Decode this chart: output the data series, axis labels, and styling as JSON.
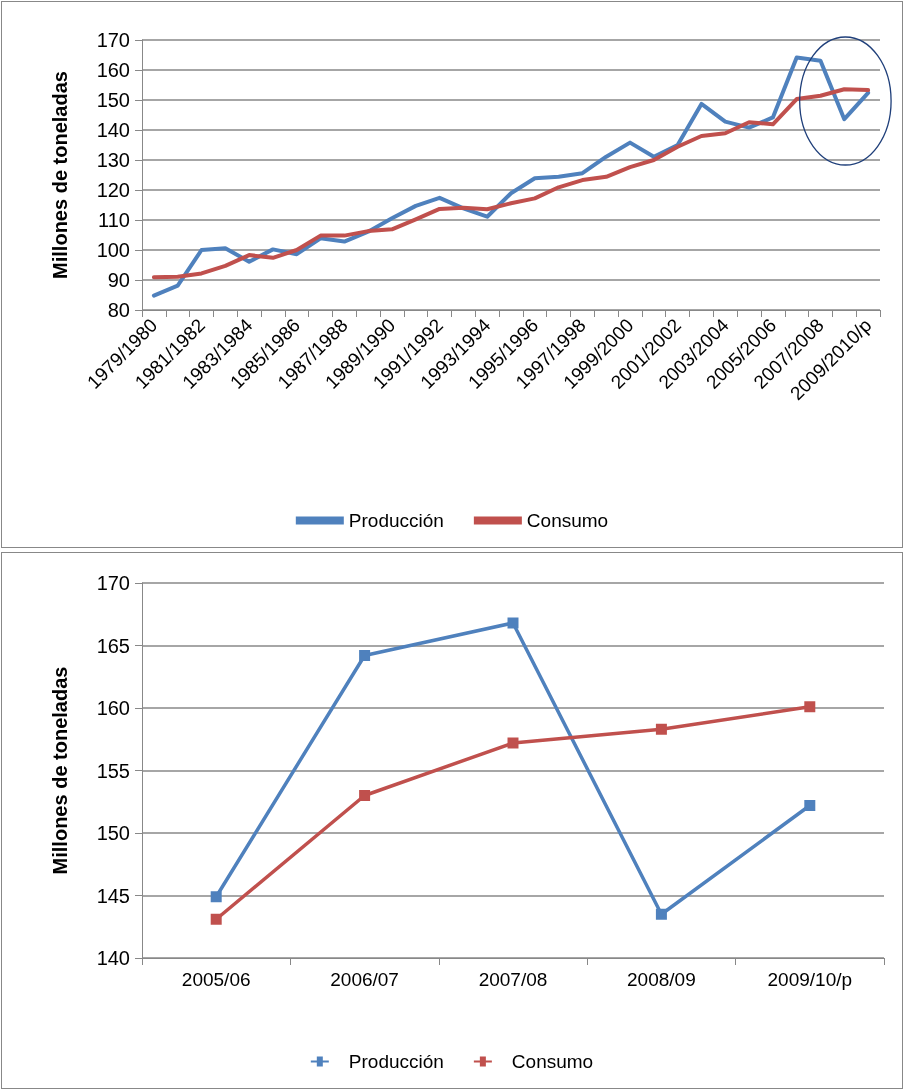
{
  "chart_data": [
    {
      "type": "line",
      "ylabel": "Millones de toneladas",
      "categories": [
        "1979/1980",
        null,
        "1981/1982",
        null,
        "1983/1984",
        null,
        "1985/1986",
        null,
        "1987/1988",
        null,
        "1989/1990",
        null,
        "1991/1992",
        null,
        "1993/1994",
        null,
        "1995/1996",
        null,
        "1997/1998",
        null,
        "1999/2000",
        null,
        "2001/2002",
        null,
        "2003/2004",
        null,
        "2005/2006",
        null,
        "2007/2008",
        null,
        "2009/2010/p"
      ],
      "series": [
        {
          "name": "Producción",
          "color": "#4f81bd",
          "values": [
            84.8,
            88.1,
            100,
            100.6,
            96.1,
            100.2,
            98.6,
            103.9,
            102.8,
            106.1,
            110.6,
            114.7,
            117.4,
            113.9,
            111.1,
            118.9,
            123.9,
            124.4,
            125.6,
            131.1,
            135.8,
            131.1,
            135,
            148.7,
            142.8,
            140.8,
            144.2,
            164.2,
            163.1,
            143.6,
            152.4
          ]
        },
        {
          "name": "Consumo",
          "color": "#c0504d",
          "values": [
            90.9,
            91.1,
            92.2,
            94.7,
            98.3,
            97.4,
            100,
            104.8,
            104.8,
            106.3,
            106.9,
            110.2,
            113.7,
            114.1,
            113.6,
            115.6,
            117.2,
            120.9,
            123.3,
            124.4,
            127.6,
            130,
            134.4,
            138,
            138.9,
            142.6,
            141.9,
            150.3,
            151.4,
            153.6,
            153.3
          ]
        }
      ],
      "ylim": [
        80,
        170
      ],
      "yticks": [
        80,
        90,
        100,
        110,
        120,
        130,
        140,
        150,
        160,
        170
      ],
      "grid": "y",
      "legend": "bottom",
      "marker": "none",
      "line_style": "solid"
    },
    {
      "type": "line",
      "ylabel": "Millones de toneladas",
      "categories": [
        "2005/06",
        "2006/07",
        "2007/08",
        "2008/09",
        "2009/10/p"
      ],
      "series": [
        {
          "name": "Producción",
          "color": "#4f81bd",
          "values": [
            144.9,
            164.2,
            166.8,
            143.5,
            152.2
          ]
        },
        {
          "name": "Consumo",
          "color": "#c0504d",
          "values": [
            143.1,
            153.0,
            157.2,
            158.3,
            160.1
          ]
        }
      ],
      "ylim": [
        140,
        170
      ],
      "yticks": [
        140,
        145,
        150,
        155,
        160,
        165,
        170
      ],
      "grid": "y",
      "legend": "bottom",
      "marker": "square",
      "line_style": "solid"
    }
  ]
}
